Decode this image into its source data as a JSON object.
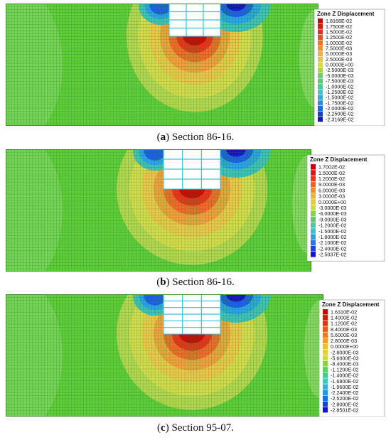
{
  "figures": [
    {
      "caption_letter": "a",
      "caption_text": " Section 86-16.",
      "legend_title": "Zone Z Displacement",
      "legend_labels": [
        "1.8168E-02",
        "1.7500E-02",
        "1.5000E-02",
        "1.2500E-02",
        "1.0000E-02",
        "7.5000E-03",
        "5.0000E-03",
        "2.5000E-03",
        "0.0000E+00",
        "-2.5000E-03",
        "-5.0000E-03",
        "-7.5000E-03",
        "-1.0000E-02",
        "-1.2500E-02",
        "-1.5000E-02",
        "-1.7500E-02",
        "-2.0000E-02",
        "-2.2500E-02",
        "-2.3169E-02"
      ],
      "pile_rows": 4
    },
    {
      "caption_letter": "b",
      "caption_text": " Section 86-16.",
      "legend_title": "Zone Z Displacement",
      "legend_labels": [
        "1.7002E-02",
        "1.5000E-02",
        "1.2000E-02",
        "9.0000E-03",
        "6.0000E-03",
        "3.0000E-03",
        "0.0000E+00",
        "-3.0000E-03",
        "-6.0000E-03",
        "-9.0000E-03",
        "-1.2000E-02",
        "-1.5000E-02",
        "-1.8000E-02",
        "-2.1000E-02",
        "-2.4000E-02",
        "-2.5037E-02"
      ],
      "pile_rows": 4
    },
    {
      "caption_letter": "c",
      "caption_text": " Section 95-07.",
      "legend_title": "Zone Z Displacement",
      "legend_labels": [
        "1.6310E-02",
        "1.4000E-02",
        "1.1200E-02",
        "8.4000E-03",
        "5.6000E-03",
        "2.8000E-03",
        "0.0000E+00",
        "-2.8000E-03",
        "-5.6000E-03",
        "-8.4000E-03",
        "-1.1200E-02",
        "-1.4000E-02",
        "-1.6800E-02",
        "-1.9600E-02",
        "-2.2400E-02",
        "-2.5200E-02",
        "-2.8000E-02",
        "-2.8501E-02"
      ],
      "pile_rows": 6
    }
  ],
  "colors": {
    "mesh_background": "#5fce3a",
    "pile_fill": "#ffffff",
    "pile_lines": "#36c4d6"
  }
}
